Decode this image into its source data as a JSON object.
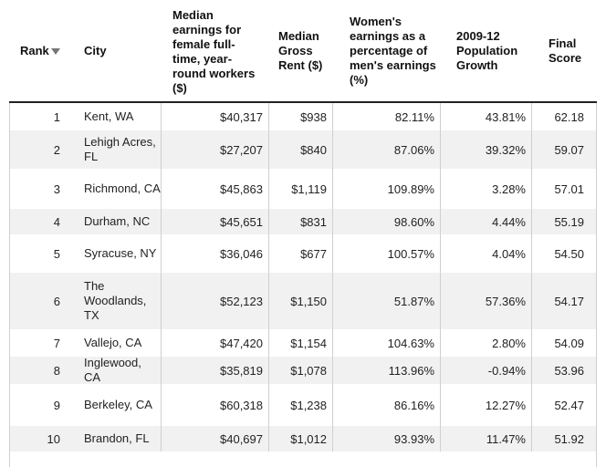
{
  "headers": {
    "rank": "Rank",
    "city": "City",
    "earnings": "Median earnings for female full-time, year-round workers ($)",
    "rent": "Median Gross Rent ($)",
    "pct": "Women's earnings as a percentage of men's earnings (%)",
    "growth": "2009-12 Population Growth",
    "score": "Final Score"
  },
  "rows": [
    {
      "rank": "1",
      "city": "Kent, WA",
      "earnings": "$40,317",
      "rent": "$938",
      "pct": "82.11%",
      "growth": "43.81%",
      "score": "62.18"
    },
    {
      "rank": "2",
      "city": "Lehigh Acres, FL",
      "earnings": "$27,207",
      "rent": "$840",
      "pct": "87.06%",
      "growth": "39.32%",
      "score": "59.07"
    },
    {
      "rank": "3",
      "city": "Richmond, CA",
      "earnings": "$45,863",
      "rent": "$1,119",
      "pct": "109.89%",
      "growth": "3.28%",
      "score": "57.01"
    },
    {
      "rank": "4",
      "city": "Durham, NC",
      "earnings": "$45,651",
      "rent": "$831",
      "pct": "98.60%",
      "growth": "4.44%",
      "score": "55.19"
    },
    {
      "rank": "5",
      "city": "Syracuse, NY",
      "earnings": "$36,046",
      "rent": "$677",
      "pct": "100.57%",
      "growth": "4.04%",
      "score": "54.50"
    },
    {
      "rank": "6",
      "city": "The Woodlands, TX",
      "earnings": "$52,123",
      "rent": "$1,150",
      "pct": "51.87%",
      "growth": "57.36%",
      "score": "54.17"
    },
    {
      "rank": "7",
      "city": "Vallejo, CA",
      "earnings": "$47,420",
      "rent": "$1,154",
      "pct": "104.63%",
      "growth": "2.80%",
      "score": "54.09"
    },
    {
      "rank": "8",
      "city": "Inglewood, CA",
      "earnings": "$35,819",
      "rent": "$1,078",
      "pct": "113.96%",
      "growth": "-0.94%",
      "score": "53.96"
    },
    {
      "rank": "9",
      "city": "Berkeley, CA",
      "earnings": "$60,318",
      "rent": "$1,238",
      "pct": "86.16%",
      "growth": "12.27%",
      "score": "52.47"
    },
    {
      "rank": "10",
      "city": "Brandon, FL",
      "earnings": "$40,697",
      "rent": "$1,012",
      "pct": "93.93%",
      "growth": "11.47%",
      "score": "51.92"
    }
  ]
}
